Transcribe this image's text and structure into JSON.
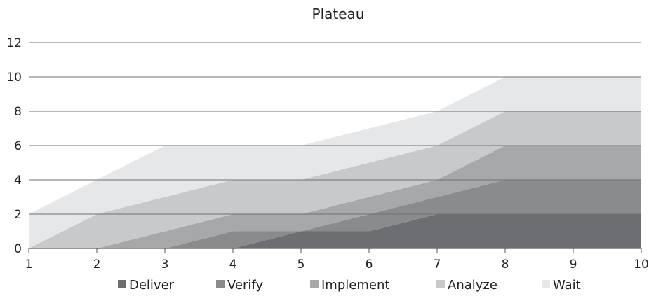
{
  "chart_data": {
    "type": "area",
    "stacked": true,
    "title": "Plateau",
    "x": [
      "1",
      "2",
      "3",
      "4",
      "5",
      "6",
      "7",
      "8",
      "9",
      "10"
    ],
    "ylim": [
      0,
      12
    ],
    "yticks": [
      "0",
      "2",
      "4",
      "6",
      "8",
      "10",
      "12"
    ],
    "grid": true,
    "legend_position": "bottom",
    "series": [
      {
        "name": "Deliver",
        "color": "#6d6e71",
        "values": [
          0,
          0,
          0,
          0,
          1,
          1,
          2,
          2,
          2,
          2
        ]
      },
      {
        "name": "Verify",
        "color": "#8a8b8d",
        "values": [
          0,
          0,
          0,
          1,
          0,
          1,
          1,
          2,
          2,
          2
        ]
      },
      {
        "name": "Implement",
        "color": "#a7a8aa",
        "values": [
          0,
          0,
          1,
          1,
          1,
          1,
          1,
          2,
          2,
          2
        ]
      },
      {
        "name": "Analyze",
        "color": "#c8c9cb",
        "values": [
          0,
          2,
          2,
          2,
          2,
          2,
          2,
          2,
          2,
          2
        ]
      },
      {
        "name": "Wait",
        "color": "#e6e7e8",
        "values": [
          2,
          2,
          3,
          2,
          2,
          2,
          2,
          2,
          2,
          2
        ]
      }
    ]
  }
}
